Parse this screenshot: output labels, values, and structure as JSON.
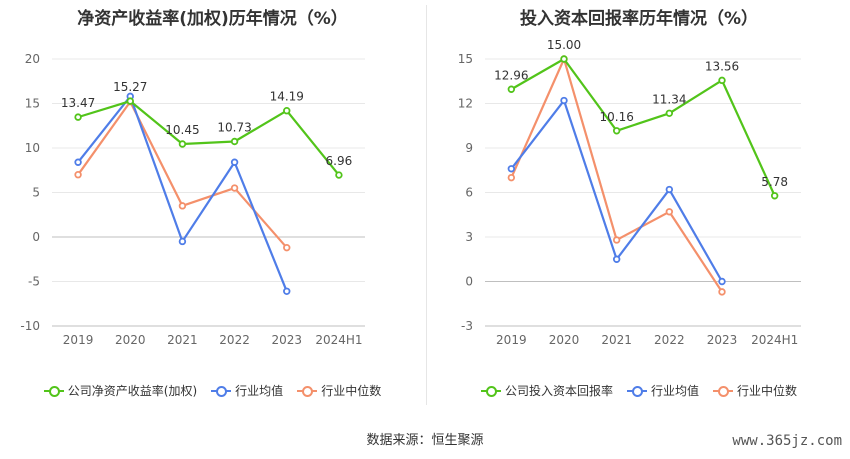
{
  "colors": {
    "company": "#52c41a",
    "avg": "#4f7de8",
    "median": "#f4906b",
    "grid": "#e8e8e8",
    "axis": "#bfbfbf"
  },
  "left": {
    "title": "净资产收益率(加权)历年情况（%）",
    "legend": [
      "公司净资产收益率(加权)",
      "行业均值",
      "行业中位数"
    ]
  },
  "right": {
    "title": "投入资本回报率历年情况（%）",
    "legend": [
      "公司投入资本回报率",
      "行业均值",
      "行业中位数"
    ]
  },
  "source": "数据来源：恒生聚源",
  "watermark": "www.365jz.com",
  "chart_data": [
    {
      "type": "line",
      "title": "净资产收益率(加权)历年情况（%）",
      "categories": [
        "2019",
        "2020",
        "2021",
        "2022",
        "2023",
        "2024H1"
      ],
      "ylim": [
        -10,
        20
      ],
      "yticks": [
        -10,
        -5,
        0,
        5,
        10,
        15,
        20
      ],
      "grid": true,
      "legend_position": "bottom",
      "series": [
        {
          "name": "公司净资产收益率(加权)",
          "color": "#52c41a",
          "values": [
            13.47,
            15.27,
            10.45,
            10.73,
            14.19,
            6.96
          ],
          "labels": [
            "13.47",
            "15.27",
            "10.45",
            "10.73",
            "14.19",
            "6.96"
          ]
        },
        {
          "name": "行业均值",
          "color": "#4f7de8",
          "values": [
            8.4,
            15.8,
            -0.5,
            8.4,
            -6.1,
            null
          ]
        },
        {
          "name": "行业中位数",
          "color": "#f4906b",
          "values": [
            7.0,
            15.2,
            3.5,
            5.5,
            -1.2,
            null
          ]
        }
      ]
    },
    {
      "type": "line",
      "title": "投入资本回报率历年情况（%）",
      "categories": [
        "2019",
        "2020",
        "2021",
        "2022",
        "2023",
        "2024H1"
      ],
      "ylim": [
        -3,
        15
      ],
      "yticks": [
        -3,
        0,
        3,
        6,
        9,
        12,
        15
      ],
      "grid": true,
      "legend_position": "bottom",
      "series": [
        {
          "name": "公司投入资本回报率",
          "color": "#52c41a",
          "values": [
            12.96,
            15.0,
            10.16,
            11.34,
            13.56,
            5.78
          ],
          "labels": [
            "12.96",
            "15.00",
            "10.16",
            "11.34",
            "13.56",
            "5.78"
          ]
        },
        {
          "name": "行业均值",
          "color": "#4f7de8",
          "values": [
            7.6,
            12.2,
            1.5,
            6.2,
            0.0,
            null
          ]
        },
        {
          "name": "行业中位数",
          "color": "#f4906b",
          "values": [
            7.0,
            15.0,
            2.8,
            4.7,
            -0.7,
            null
          ]
        }
      ]
    }
  ]
}
